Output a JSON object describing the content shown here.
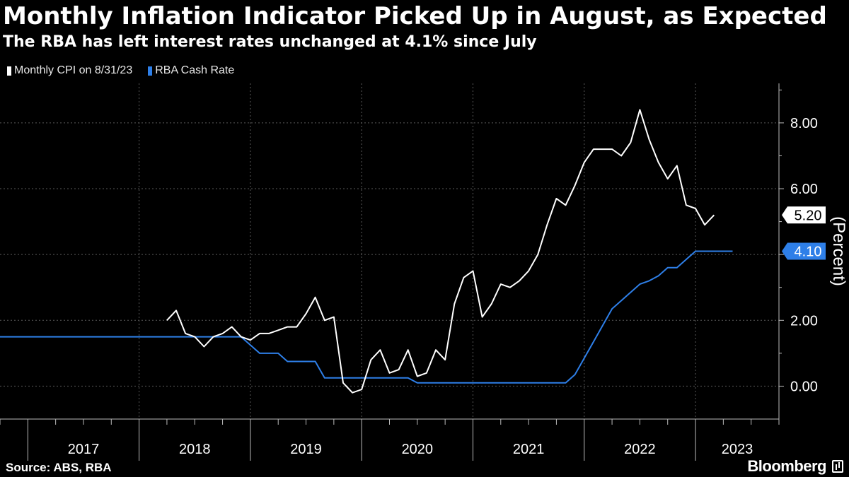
{
  "chart_data": {
    "type": "line",
    "title": "Monthly Inflation Indicator Picked Up in August, as Expected",
    "subtitle": "The RBA has left interest rates unchanged at 4.1% since July",
    "ylabel": "(Percent)",
    "ylim": [
      -1,
      9.2
    ],
    "yticks": [
      0,
      2,
      4,
      6,
      8
    ],
    "ytick_labels": [
      "0.00",
      "2.00",
      "4.00",
      "6.00",
      "8.00"
    ],
    "xlim": [
      "2016-10",
      "2023-10"
    ],
    "year_labels": [
      "2017",
      "2018",
      "2019",
      "2020",
      "2021",
      "2022",
      "2023"
    ],
    "grid": true,
    "legend_position": "top-left",
    "series": [
      {
        "name": "Monthly CPI on 8/31/23",
        "color": "#ffffff",
        "end_label": "5.20",
        "points": [
          [
            "2018-04",
            2.0
          ],
          [
            "2018-05",
            2.3
          ],
          [
            "2018-06",
            1.6
          ],
          [
            "2018-07",
            1.5
          ],
          [
            "2018-08",
            1.2
          ],
          [
            "2018-09",
            1.5
          ],
          [
            "2018-10",
            1.6
          ],
          [
            "2018-11",
            1.8
          ],
          [
            "2018-12",
            1.5
          ],
          [
            "2019-01",
            1.4
          ],
          [
            "2019-02",
            1.6
          ],
          [
            "2019-03",
            1.6
          ],
          [
            "2019-04",
            1.7
          ],
          [
            "2019-05",
            1.8
          ],
          [
            "2019-06",
            1.8
          ],
          [
            "2019-07",
            2.2
          ],
          [
            "2019-08",
            2.7
          ],
          [
            "2019-09",
            2.0
          ],
          [
            "2019-10",
            2.1
          ],
          [
            "2019-11",
            0.1
          ],
          [
            "2019-12",
            -0.2
          ],
          [
            "2020-01",
            -0.1
          ],
          [
            "2020-02",
            0.8
          ],
          [
            "2020-03",
            1.1
          ],
          [
            "2020-04",
            0.4
          ],
          [
            "2020-05",
            0.5
          ],
          [
            "2020-06",
            1.1
          ],
          [
            "2020-07",
            0.3
          ],
          [
            "2020-08",
            0.4
          ],
          [
            "2020-09",
            1.1
          ],
          [
            "2020-10",
            0.8
          ],
          [
            "2020-11",
            2.5
          ],
          [
            "2020-12",
            3.3
          ],
          [
            "2021-01",
            3.5
          ],
          [
            "2021-02",
            2.1
          ],
          [
            "2021-03",
            2.5
          ],
          [
            "2021-04",
            3.1
          ],
          [
            "2021-05",
            3.0
          ],
          [
            "2021-06",
            3.2
          ],
          [
            "2021-07",
            3.5
          ],
          [
            "2021-08",
            4.0
          ],
          [
            "2021-09",
            4.9
          ],
          [
            "2021-10",
            5.7
          ],
          [
            "2021-11",
            5.5
          ],
          [
            "2021-12",
            6.1
          ],
          [
            "2022-01",
            6.8
          ],
          [
            "2022-02",
            7.2
          ],
          [
            "2022-03",
            7.2
          ],
          [
            "2022-04",
            7.2
          ],
          [
            "2022-05",
            7.0
          ],
          [
            "2022-06",
            7.4
          ],
          [
            "2022-07",
            8.4
          ],
          [
            "2022-08",
            7.5
          ],
          [
            "2022-09",
            6.8
          ],
          [
            "2022-10",
            6.3
          ],
          [
            "2022-11",
            6.7
          ],
          [
            "2022-12",
            5.5
          ],
          [
            "2023-01",
            5.4
          ],
          [
            "2023-02",
            4.9
          ],
          [
            "2023-03",
            5.2
          ]
        ]
      },
      {
        "name": "RBA Cash Rate",
        "color": "#2e7fe8",
        "end_label": "4.10",
        "points": [
          [
            "2016-10",
            1.5
          ],
          [
            "2018-12",
            1.5
          ],
          [
            "2019-01",
            1.25
          ],
          [
            "2019-02",
            1.0
          ],
          [
            "2019-04",
            1.0
          ],
          [
            "2019-05",
            0.75
          ],
          [
            "2019-08",
            0.75
          ],
          [
            "2019-09",
            0.25
          ],
          [
            "2020-06",
            0.25
          ],
          [
            "2020-07",
            0.1
          ],
          [
            "2021-11",
            0.1
          ],
          [
            "2021-12",
            0.35
          ],
          [
            "2022-01",
            0.85
          ],
          [
            "2022-02",
            1.35
          ],
          [
            "2022-03",
            1.85
          ],
          [
            "2022-04",
            2.35
          ],
          [
            "2022-05",
            2.6
          ],
          [
            "2022-06",
            2.85
          ],
          [
            "2022-07",
            3.1
          ],
          [
            "2022-08",
            3.2
          ],
          [
            "2022-09",
            3.35
          ],
          [
            "2022-10",
            3.6
          ],
          [
            "2022-11",
            3.6
          ],
          [
            "2022-12",
            3.85
          ],
          [
            "2023-01",
            4.1
          ],
          [
            "2023-05",
            4.1
          ]
        ]
      }
    ]
  },
  "source": "Source: ABS, RBA",
  "brand": "Bloomberg",
  "colors": {
    "background": "#000000",
    "grid": "#5a5a5a",
    "axis": "#bbbbbb",
    "text": "#ffffff"
  }
}
